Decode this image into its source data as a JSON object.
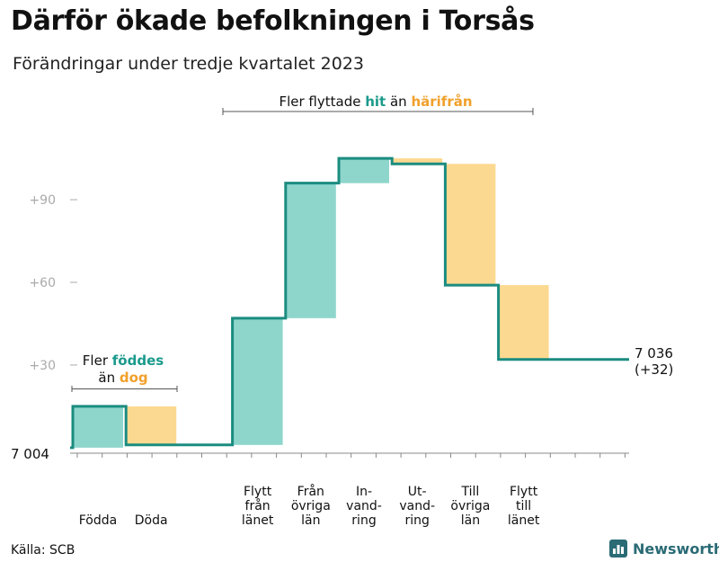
{
  "title": "Därför ökade befolkningen i Torsås",
  "subtitle": "Förändringar under tredje kvartalet 2023",
  "source": "Källa: SCB",
  "brand": {
    "name": "Newsworthy",
    "icon": "bar-chart-logo-icon"
  },
  "colors": {
    "increase": "#8ed6cc",
    "decrease": "#fcd990",
    "line": "#1b8c80",
    "accent_hit": "#1b9a8c",
    "accent_harifran": "#f1a02b",
    "tick": "#aaaaaa",
    "axis": "#888888"
  },
  "chart_data": {
    "type": "bar",
    "subtype": "waterfall",
    "baseline": 7004,
    "ylim": [
      -2,
      122
    ],
    "yticks": [
      {
        "value": 30,
        "label": "+30"
      },
      {
        "value": 60,
        "label": "+60"
      },
      {
        "value": 90,
        "label": "+90"
      }
    ],
    "start_label": "7  004",
    "categories": [
      {
        "label": [
          "Födda"
        ],
        "delta": 15
      },
      {
        "label": [
          "Döda"
        ],
        "delta": -14
      },
      {
        "label": [
          "Flytt",
          "från",
          "länet"
        ],
        "delta": 46
      },
      {
        "label": [
          "Från",
          "övriga",
          "län"
        ],
        "delta": 49
      },
      {
        "label": [
          "In-",
          "vand-",
          "ring"
        ],
        "delta": 9
      },
      {
        "label": [
          "Ut-",
          "vand-",
          "ring"
        ],
        "delta": -2
      },
      {
        "label": [
          "Till",
          "övriga",
          "län"
        ],
        "delta": -44
      },
      {
        "label": [
          "Flytt",
          "till",
          "länet"
        ],
        "delta": -27
      }
    ],
    "end_label": "7 036",
    "end_change": "(+32)",
    "annotations": {
      "births": {
        "line1_prefix": "Fler ",
        "line1_em": "föddes",
        "line2_prefix": "än ",
        "line2_em": "dog"
      },
      "migration": {
        "prefix": "Fler flyttade ",
        "em1": "hit",
        "middle": "  än ",
        "em2": "härifrån"
      }
    }
  }
}
